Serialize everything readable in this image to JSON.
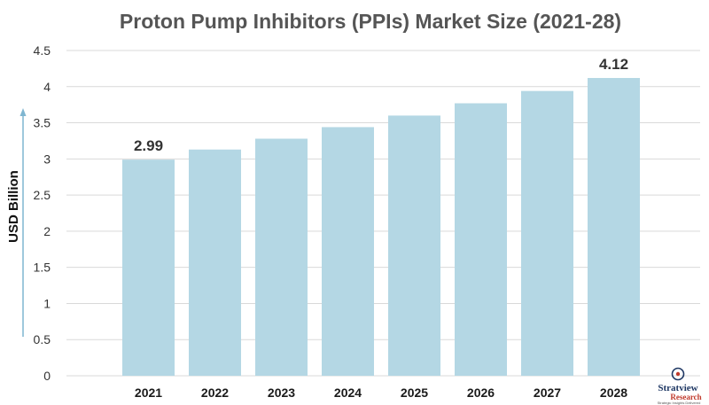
{
  "chart_data": {
    "type": "bar",
    "title": "Proton Pump Inhibitors (PPIs) Market Size (2021-28)",
    "ylabel": "USD Billion",
    "xlabel": "",
    "categories": [
      "2021",
      "2022",
      "2023",
      "2024",
      "2025",
      "2026",
      "2027",
      "2028"
    ],
    "values": [
      2.99,
      3.13,
      3.28,
      3.44,
      3.6,
      3.77,
      3.94,
      4.12
    ],
    "data_labels": [
      "2.99",
      "",
      "",
      "",
      "",
      "",
      "",
      "4.12"
    ],
    "ylim": [
      0,
      4.5
    ],
    "yticks": [
      "0",
      "0.5",
      "1",
      "1.5",
      "2",
      "2.5",
      "3",
      "3.5",
      "4",
      "4.5"
    ],
    "grid": true,
    "bar_color": "#b4d7e4",
    "grid_color": "#d9d9d9",
    "arrow_color": "#7fb6d1"
  },
  "branding": {
    "logo_name": "Stratview",
    "logo_sub": "Research",
    "logo_tagline": "Strategic Insights Delivered"
  }
}
